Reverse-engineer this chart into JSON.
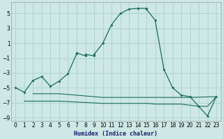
{
  "xlabel": "Humidex (Indice chaleur)",
  "background_color": "#cde8e5",
  "grid_color": "#afd4d0",
  "line_color": "#1a6b5a",
  "xlim": [
    -0.5,
    23.5
  ],
  "ylim": [
    -9.5,
    6.5
  ],
  "yticks": [
    -9,
    -7,
    -5,
    -3,
    -1,
    1,
    3,
    5
  ],
  "xticks": [
    0,
    1,
    2,
    3,
    4,
    5,
    6,
    7,
    8,
    9,
    10,
    11,
    12,
    13,
    14,
    15,
    16,
    17,
    18,
    19,
    20,
    21,
    22,
    23
  ],
  "series0_x": [
    0,
    1,
    2,
    3,
    4,
    5,
    6,
    7,
    7,
    8,
    8,
    9,
    9,
    10,
    11,
    12,
    13,
    14,
    14,
    15,
    15,
    16,
    17,
    18,
    19,
    20,
    21,
    22,
    23
  ],
  "series0_y": [
    -5.0,
    -5.6,
    -4.0,
    -3.5,
    -4.8,
    -4.1,
    -3.1,
    -0.4,
    -0.3,
    -0.7,
    -0.5,
    -0.7,
    -0.5,
    1.0,
    3.5,
    5.0,
    5.6,
    5.7,
    5.7,
    5.7,
    5.6,
    4.1,
    -2.5,
    -5.0,
    -6.0,
    -6.2,
    -7.5,
    -8.8,
    -6.2
  ],
  "series1_x": [
    2,
    3,
    5,
    10,
    13,
    14,
    17,
    18,
    19,
    20,
    23
  ],
  "series1_y": [
    -5.8,
    -5.8,
    -5.8,
    -6.3,
    -6.3,
    -6.3,
    -6.3,
    -6.3,
    -6.3,
    -6.3,
    -6.2
  ],
  "series2_x": [
    1,
    2,
    4,
    5,
    10,
    13,
    15,
    16,
    17,
    18,
    19,
    21,
    22,
    23
  ],
  "series2_y": [
    -6.8,
    -6.8,
    -6.8,
    -6.8,
    -7.1,
    -7.1,
    -7.1,
    -7.2,
    -7.2,
    -7.2,
    -7.2,
    -7.5,
    -7.5,
    -6.2
  ]
}
